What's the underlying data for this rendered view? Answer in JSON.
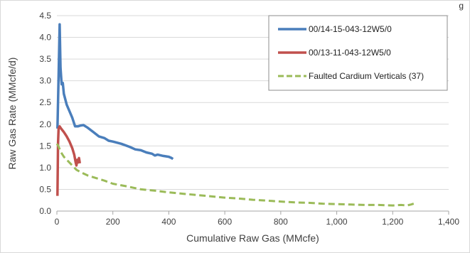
{
  "corner_text": "g",
  "chart_data": {
    "type": "line",
    "title": "",
    "xlabel": "Cumulative Raw Gas (MMcfe)",
    "ylabel": "Raw Gas Rate (MMcfe/d)",
    "xlim": [
      0,
      1400
    ],
    "ylim": [
      0,
      4.5
    ],
    "xticks": [
      0,
      200,
      400,
      600,
      800,
      1000,
      1200,
      1400
    ],
    "xtick_labels": [
      "0",
      "200",
      "400",
      "600",
      "800",
      "1,000",
      "1,200",
      "1,400"
    ],
    "yticks": [
      0,
      0.5,
      1,
      1.5,
      2,
      2.5,
      3,
      3.5,
      4,
      4.5
    ],
    "ytick_labels": [
      "0.0",
      "0.5",
      "1.0",
      "1.5",
      "2.0",
      "2.5",
      "3.0",
      "3.5",
      "4.0",
      "4.5"
    ],
    "grid": "horizontal",
    "legend_position": "top-right",
    "series": [
      {
        "name": "00/14-15-043-12W5/0",
        "color": "#4a7ebb",
        "style": "solid",
        "points": [
          [
            2,
            1.9
          ],
          [
            6,
            3.1
          ],
          [
            10,
            4.3
          ],
          [
            13,
            3.3
          ],
          [
            17,
            2.92
          ],
          [
            21,
            2.95
          ],
          [
            25,
            2.7
          ],
          [
            35,
            2.45
          ],
          [
            45,
            2.3
          ],
          [
            55,
            2.15
          ],
          [
            65,
            1.95
          ],
          [
            75,
            1.95
          ],
          [
            85,
            1.97
          ],
          [
            95,
            1.98
          ],
          [
            110,
            1.92
          ],
          [
            130,
            1.82
          ],
          [
            150,
            1.72
          ],
          [
            170,
            1.68
          ],
          [
            185,
            1.62
          ],
          [
            200,
            1.6
          ],
          [
            230,
            1.55
          ],
          [
            260,
            1.48
          ],
          [
            280,
            1.42
          ],
          [
            300,
            1.4
          ],
          [
            320,
            1.35
          ],
          [
            340,
            1.32
          ],
          [
            350,
            1.28
          ],
          [
            360,
            1.3
          ],
          [
            380,
            1.27
          ],
          [
            400,
            1.25
          ],
          [
            410,
            1.22
          ],
          [
            415,
            1.2
          ]
        ]
      },
      {
        "name": "00/13-11-043-12W5/0",
        "color": "#c0504d",
        "style": "solid",
        "points": [
          [
            2,
            0.35
          ],
          [
            4,
            1.55
          ],
          [
            6,
            1.9
          ],
          [
            10,
            1.95
          ],
          [
            15,
            1.9
          ],
          [
            25,
            1.82
          ],
          [
            35,
            1.72
          ],
          [
            45,
            1.6
          ],
          [
            55,
            1.45
          ],
          [
            62,
            1.3
          ],
          [
            67,
            1.12
          ],
          [
            70,
            1.05
          ],
          [
            73,
            1.18
          ],
          [
            76,
            1.12
          ],
          [
            79,
            1.22
          ],
          [
            82,
            1.1
          ]
        ]
      },
      {
        "name": "Faulted Cardium Verticals (37)",
        "color": "#9bbb59",
        "style": "dashed",
        "points": [
          [
            0,
            1.55
          ],
          [
            5,
            1.5
          ],
          [
            15,
            1.35
          ],
          [
            25,
            1.25
          ],
          [
            40,
            1.15
          ],
          [
            55,
            1.05
          ],
          [
            70,
            0.95
          ],
          [
            90,
            0.88
          ],
          [
            110,
            0.82
          ],
          [
            140,
            0.76
          ],
          [
            170,
            0.7
          ],
          [
            200,
            0.63
          ],
          [
            250,
            0.57
          ],
          [
            300,
            0.5
          ],
          [
            350,
            0.47
          ],
          [
            400,
            0.43
          ],
          [
            450,
            0.4
          ],
          [
            500,
            0.37
          ],
          [
            550,
            0.34
          ],
          [
            600,
            0.31
          ],
          [
            650,
            0.29
          ],
          [
            700,
            0.26
          ],
          [
            750,
            0.24
          ],
          [
            800,
            0.22
          ],
          [
            850,
            0.2
          ],
          [
            900,
            0.19
          ],
          [
            950,
            0.17
          ],
          [
            1000,
            0.16
          ],
          [
            1050,
            0.15
          ],
          [
            1100,
            0.14
          ],
          [
            1150,
            0.14
          ],
          [
            1200,
            0.13
          ],
          [
            1230,
            0.14
          ],
          [
            1250,
            0.13
          ],
          [
            1265,
            0.15
          ],
          [
            1275,
            0.17
          ]
        ]
      }
    ]
  }
}
